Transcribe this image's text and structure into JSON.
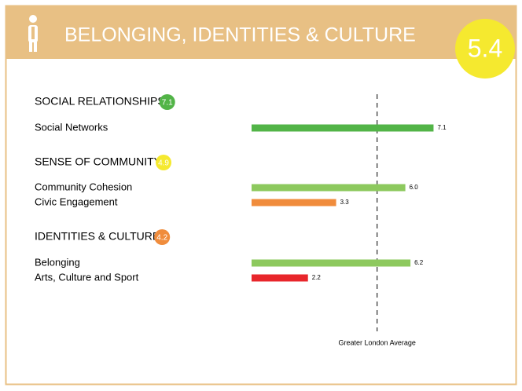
{
  "chart_data": {
    "type": "bar",
    "title": "BELONGING, IDENTITIES & CULTURE",
    "score": 5.4,
    "score_color": "#f5e92f",
    "sections": [
      {
        "name": "SOCIAL RELATIONSHIPS",
        "score": 7.1,
        "score_color": "#52b447",
        "items": [
          {
            "name": "Social Networks",
            "value": 7.1,
            "color": "#52b447"
          }
        ]
      },
      {
        "name": "SENSE OF COMMUNITY",
        "score": 4.9,
        "score_color": "#f5e92f",
        "items": [
          {
            "name": "Community Cohesion",
            "value": 6.0,
            "value_label": "6.0",
            "color": "#8dc95e"
          },
          {
            "name": "Civic Engagement",
            "value": 3.3,
            "color": "#f08c3c"
          }
        ]
      },
      {
        "name": "IDENTITIES & CULTURE",
        "score": 4.2,
        "score_color": "#f08c3c",
        "items": [
          {
            "name": "Belonging",
            "value": 6.2,
            "color": "#8dc95e"
          },
          {
            "name": "Arts, Culture and Sport",
            "value": 2.2,
            "color": "#e8262b"
          }
        ]
      }
    ],
    "average": 4.9,
    "average_label": "Greater London Average"
  }
}
